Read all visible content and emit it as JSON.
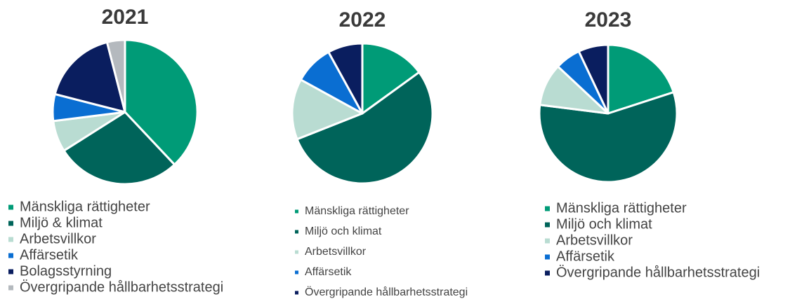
{
  "chart_data": [
    {
      "type": "pie",
      "title": "2021",
      "categories": [
        "Mänskliga rättigheter",
        "Miljö & klimat",
        "Arbetsvillkor",
        "Affärsetik",
        "Bolagsstyrning",
        "Övergripande hållbarhetsstrategi"
      ],
      "values": [
        38,
        28,
        7,
        6,
        17,
        4
      ],
      "colors": [
        "#009b77",
        "#00645a",
        "#b9dcd2",
        "#0a6ed2",
        "#0a1e5f",
        "#b4b9be"
      ]
    },
    {
      "type": "pie",
      "title": "2022",
      "categories": [
        "Mänskliga rättigheter",
        "Miljö och klimat",
        "Arbetsvillkor",
        "Affärsetik",
        "Övergripande hållbarhetsstrategi"
      ],
      "values": [
        15,
        54,
        14,
        9,
        8
      ],
      "colors": [
        "#009b77",
        "#00645a",
        "#b9dcd2",
        "#0a6ed2",
        "#0a1e5f"
      ]
    },
    {
      "type": "pie",
      "title": "2023",
      "categories": [
        "Mänskliga rättigheter",
        "Miljö och klimat",
        "Arbetsvillkor",
        "Affärsetik",
        "Övergripande hållbarhetsstrategi"
      ],
      "values": [
        20,
        57,
        10,
        6,
        7
      ],
      "colors": [
        "#009b77",
        "#00645a",
        "#b9dcd2",
        "#0a6ed2",
        "#0a1e5f"
      ]
    }
  ]
}
